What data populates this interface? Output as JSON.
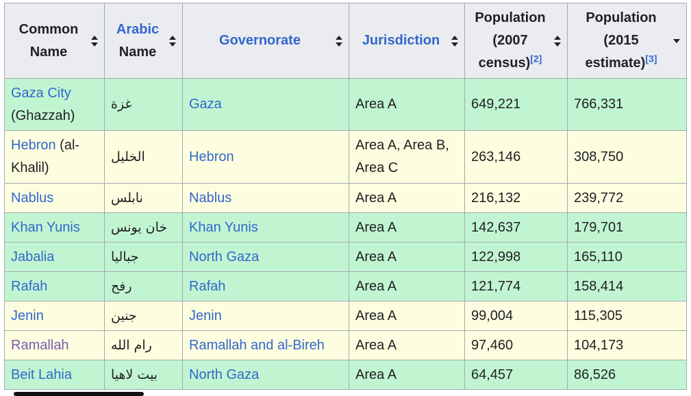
{
  "headers": [
    {
      "text": "Common Name",
      "link": false
    },
    {
      "text": "Arabic",
      "text2": "Name",
      "link": true
    },
    {
      "text": "Governorate",
      "link": true
    },
    {
      "text": "Jurisdiction",
      "link": true
    },
    {
      "text": "Population (2007 census)",
      "ref": "[2]",
      "link": false
    },
    {
      "text": "Population (2015 estimate)",
      "ref": "[3]",
      "link": false,
      "sorted": "descending"
    }
  ],
  "colors": {
    "green_row": "#c1f5d2",
    "yellow_row": "#fdfde0",
    "header_bg": "#eaecf0",
    "link": "#3366cc",
    "visited_link": "#795cb2"
  },
  "rows": [
    {
      "name": "Gaza City",
      "name_extra": "(Ghazzah)",
      "arabic": "غزة",
      "governorate": "Gaza",
      "jurisdiction": "Area A",
      "pop2007": "649,221",
      "pop2015": "766,331",
      "row_color": "green"
    },
    {
      "name": "Hebron",
      "name_extra": "(al-Khalil)",
      "arabic": "الخليل",
      "governorate": "Hebron",
      "jurisdiction": "Area A, Area B, Area C",
      "pop2007": "263,146",
      "pop2015": "308,750",
      "row_color": "yellow"
    },
    {
      "name": "Nablus",
      "name_extra": "",
      "arabic": "نابلس",
      "governorate": "Nablus",
      "jurisdiction": "Area A",
      "pop2007": "216,132",
      "pop2015": "239,772",
      "row_color": "yellow"
    },
    {
      "name": "Khan Yunis",
      "name_extra": "",
      "arabic": "خان يونس",
      "governorate": "Khan Yunis",
      "jurisdiction": "Area A",
      "pop2007": "142,637",
      "pop2015": "179,701",
      "row_color": "green"
    },
    {
      "name": "Jabalia",
      "name_extra": "",
      "arabic": "جباليا",
      "governorate": "North Gaza",
      "jurisdiction": "Area A",
      "pop2007": "122,998",
      "pop2015": "165,110",
      "row_color": "green"
    },
    {
      "name": "Rafah",
      "name_extra": "",
      "arabic": "رفح",
      "governorate": "Rafah",
      "jurisdiction": "Area A",
      "pop2007": "121,774",
      "pop2015": "158,414",
      "row_color": "green"
    },
    {
      "name": "Jenin",
      "name_extra": "",
      "arabic": "جنين",
      "governorate": "Jenin",
      "jurisdiction": "Area A",
      "pop2007": "99,004",
      "pop2015": "115,305",
      "row_color": "yellow"
    },
    {
      "name": "Ramallah",
      "name_extra": "",
      "arabic": "رام الله",
      "governorate": "Ramallah and al-Bireh",
      "jurisdiction": "Area A",
      "pop2007": "97,460",
      "pop2015": "104,173",
      "row_color": "yellow",
      "visited": true
    },
    {
      "name": "Beit Lahia",
      "name_extra": "",
      "arabic": "بيت لاهيا",
      "governorate": "North Gaza",
      "jurisdiction": "Area A",
      "pop2007": "64,457",
      "pop2015": "86,526",
      "row_color": "green"
    }
  ]
}
